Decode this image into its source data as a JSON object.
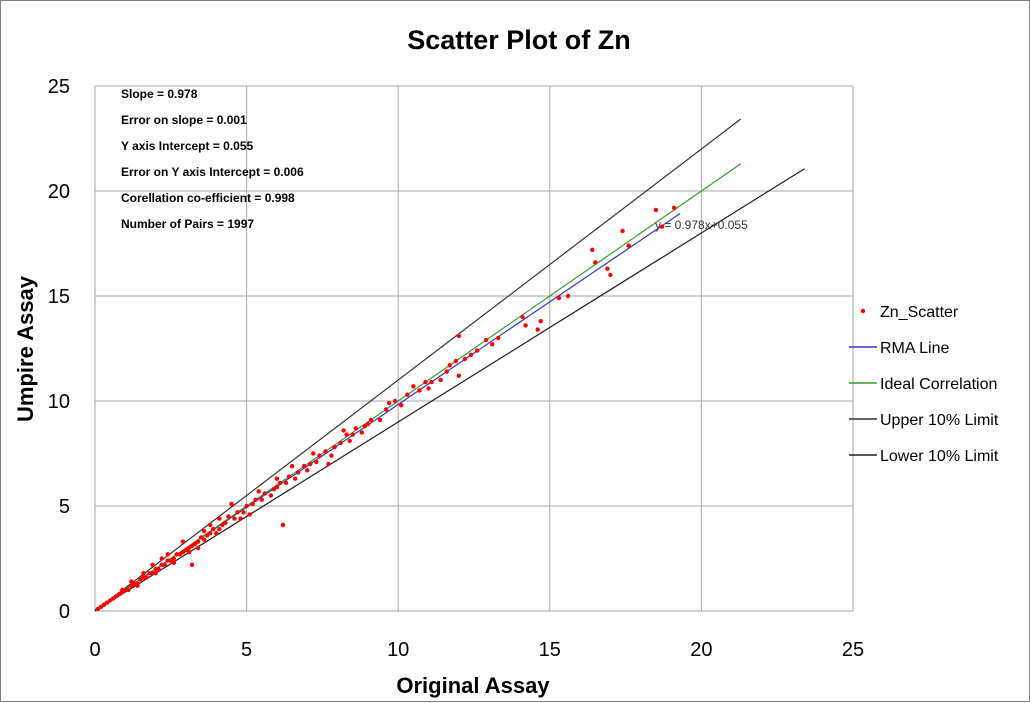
{
  "chart_data": {
    "type": "scatter",
    "title": "Scatter Plot of Zn",
    "xlabel": "Original Assay",
    "ylabel": "Umpire Assay",
    "xlim": [
      0,
      25
    ],
    "ylim": [
      0,
      25
    ],
    "xticks": [
      "0",
      "5",
      "10",
      "15",
      "20",
      "25"
    ],
    "yticks": [
      "0",
      "5",
      "10",
      "15",
      "20",
      "25"
    ],
    "grid": true,
    "legend_position": "right",
    "annotations": [
      "Slope = 0.978",
      "Error on slope = 0.001",
      "Y axis Intercept = 0.055",
      "Error on Y axis Intercept = 0.006",
      "Corellation co-efficient = 0.998",
      "Number of Pairs = 1997"
    ],
    "trendline_equation": "y = 0.978x+0.055",
    "series": [
      {
        "name": "Zn_Scatter",
        "kind": "points",
        "color": "#ff0000",
        "points": [
          [
            6.2,
            4.1
          ],
          [
            3.2,
            2.2
          ],
          [
            12.0,
            13.1
          ],
          [
            16.4,
            17.2
          ],
          [
            17.6,
            17.4
          ],
          [
            17.4,
            18.1
          ],
          [
            18.7,
            18.3
          ],
          [
            18.5,
            19.1
          ],
          [
            19.1,
            19.2
          ],
          [
            17.0,
            16.0
          ],
          [
            16.9,
            16.3
          ],
          [
            16.5,
            16.6
          ],
          [
            15.3,
            14.9
          ],
          [
            15.6,
            15.0
          ],
          [
            14.7,
            13.8
          ],
          [
            14.6,
            13.4
          ],
          [
            14.2,
            13.6
          ],
          [
            14.1,
            14.0
          ],
          [
            13.1,
            12.7
          ],
          [
            12.9,
            12.9
          ],
          [
            12.4,
            12.2
          ],
          [
            12.0,
            11.2
          ],
          [
            11.9,
            11.9
          ],
          [
            11.6,
            11.4
          ],
          [
            11.4,
            11.0
          ],
          [
            11.0,
            10.6
          ],
          [
            10.9,
            10.9
          ],
          [
            10.7,
            10.5
          ],
          [
            10.3,
            10.3
          ],
          [
            10.1,
            9.8
          ],
          [
            9.9,
            10.0
          ],
          [
            9.6,
            9.6
          ],
          [
            9.4,
            9.1
          ],
          [
            9.1,
            9.1
          ],
          [
            8.9,
            8.8
          ],
          [
            8.8,
            8.5
          ],
          [
            8.6,
            8.7
          ],
          [
            8.4,
            8.1
          ],
          [
            8.3,
            8.4
          ],
          [
            8.1,
            8.0
          ],
          [
            7.9,
            7.8
          ],
          [
            7.8,
            7.4
          ],
          [
            7.6,
            7.6
          ],
          [
            7.4,
            7.4
          ],
          [
            7.3,
            7.1
          ],
          [
            7.1,
            7.0
          ],
          [
            7.0,
            6.7
          ],
          [
            6.9,
            6.9
          ],
          [
            6.7,
            6.6
          ],
          [
            6.6,
            6.3
          ],
          [
            6.4,
            6.4
          ],
          [
            6.3,
            6.1
          ],
          [
            6.1,
            6.1
          ],
          [
            6.0,
            5.9
          ],
          [
            5.9,
            5.8
          ],
          [
            5.8,
            5.5
          ],
          [
            5.6,
            5.6
          ],
          [
            5.5,
            5.3
          ],
          [
            5.3,
            5.3
          ],
          [
            5.2,
            5.1
          ],
          [
            5.0,
            5.0
          ],
          [
            4.9,
            4.7
          ],
          [
            4.7,
            4.7
          ],
          [
            4.6,
            4.4
          ],
          [
            4.4,
            4.5
          ],
          [
            4.3,
            4.2
          ],
          [
            4.2,
            4.1
          ],
          [
            4.1,
            3.9
          ],
          [
            3.9,
            3.9
          ],
          [
            3.8,
            3.7
          ],
          [
            3.7,
            3.6
          ],
          [
            3.6,
            3.4
          ],
          [
            3.5,
            3.5
          ],
          [
            3.4,
            3.3
          ],
          [
            3.3,
            3.2
          ],
          [
            3.2,
            3.1
          ],
          [
            3.1,
            3.0
          ],
          [
            3.0,
            2.9
          ],
          [
            2.9,
            2.8
          ],
          [
            2.8,
            2.7
          ],
          [
            2.7,
            2.7
          ],
          [
            2.6,
            2.5
          ],
          [
            2.5,
            2.4
          ],
          [
            2.4,
            2.4
          ],
          [
            2.3,
            2.2
          ],
          [
            2.2,
            2.2
          ],
          [
            2.1,
            2.0
          ],
          [
            2.0,
            2.0
          ],
          [
            1.9,
            1.8
          ],
          [
            1.8,
            1.8
          ],
          [
            1.7,
            1.6
          ],
          [
            1.6,
            1.6
          ],
          [
            1.5,
            1.5
          ],
          [
            1.4,
            1.3
          ],
          [
            1.3,
            1.3
          ],
          [
            1.2,
            1.2
          ],
          [
            1.1,
            1.0
          ],
          [
            1.0,
            1.0
          ],
          [
            0.9,
            0.9
          ],
          [
            0.8,
            0.8
          ],
          [
            0.7,
            0.7
          ],
          [
            0.6,
            0.6
          ],
          [
            0.5,
            0.5
          ],
          [
            0.4,
            0.4
          ],
          [
            0.3,
            0.3
          ],
          [
            0.2,
            0.2
          ],
          [
            0.1,
            0.1
          ],
          [
            4.5,
            5.1
          ],
          [
            3.8,
            4.1
          ],
          [
            2.9,
            3.3
          ],
          [
            2.4,
            2.7
          ],
          [
            1.9,
            2.2
          ],
          [
            5.1,
            4.6
          ],
          [
            4.8,
            4.4
          ],
          [
            4.0,
            3.7
          ],
          [
            3.4,
            3.0
          ],
          [
            2.6,
            2.3
          ],
          [
            6.5,
            6.9
          ],
          [
            7.2,
            7.5
          ],
          [
            7.7,
            7.0
          ],
          [
            8.2,
            8.6
          ],
          [
            8.5,
            8.4
          ],
          [
            9.0,
            8.9
          ],
          [
            9.7,
            9.9
          ],
          [
            10.5,
            10.7
          ],
          [
            11.1,
            10.9
          ],
          [
            11.7,
            11.7
          ],
          [
            12.2,
            12.0
          ],
          [
            12.6,
            12.4
          ],
          [
            13.3,
            13.0
          ],
          [
            2.2,
            2.5
          ],
          [
            1.6,
            1.8
          ],
          [
            1.2,
            1.4
          ],
          [
            0.9,
            1.0
          ],
          [
            4.1,
            4.4
          ],
          [
            3.6,
            3.8
          ],
          [
            5.4,
            5.7
          ],
          [
            6.0,
            6.3
          ],
          [
            3.1,
            2.8
          ],
          [
            2.0,
            1.8
          ],
          [
            1.4,
            1.2
          ]
        ]
      },
      {
        "name": "RMA Line",
        "kind": "line",
        "color": "#3333cc",
        "from": [
          0,
          0.055
        ],
        "to": [
          19.3,
          18.93
        ]
      },
      {
        "name": "Ideal Correlation",
        "kind": "line",
        "color": "#33a02c",
        "from": [
          0,
          0
        ],
        "to": [
          21.3,
          21.3
        ]
      },
      {
        "name": "Upper 10% Limit",
        "kind": "line",
        "color": "#333333",
        "from": [
          0,
          0
        ],
        "to": [
          21.3,
          23.43
        ]
      },
      {
        "name": "Lower 10% Limit",
        "kind": "line",
        "color": "#1a1a1a",
        "from": [
          0,
          0
        ],
        "to": [
          23.4,
          21.06
        ]
      }
    ]
  }
}
